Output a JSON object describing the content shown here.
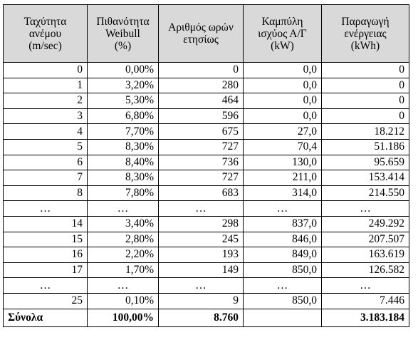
{
  "headers": [
    "Ταχύτητα\nανέμου\n(m/sec)",
    "Πιθανότητα\nWeibull\n(%)",
    "Αριθμός ωρών\nετησίως",
    "Καμπύλη\nισχύος Α/Γ\n(kW)",
    "Παραγωγή\nενέργειας\n(kWh)"
  ],
  "rows": [
    [
      "0",
      "0,00%",
      "0",
      "0,0",
      "0"
    ],
    [
      "1",
      "3,20%",
      "280",
      "0,0",
      "0"
    ],
    [
      "2",
      "5,30%",
      "464",
      "0,0",
      "0"
    ],
    [
      "3",
      "6,80%",
      "596",
      "0,0",
      "0"
    ],
    [
      "4",
      "7,70%",
      "675",
      "27,0",
      "18.212"
    ],
    [
      "5",
      "8,30%",
      "727",
      "70,4",
      "51.186"
    ],
    [
      "6",
      "8,40%",
      "736",
      "130,0",
      "95.659"
    ],
    [
      "7",
      "8,30%",
      "727",
      "211,0",
      "153.414"
    ],
    [
      "8",
      "7,80%",
      "683",
      "314,0",
      "214.550"
    ],
    [
      "…",
      "…",
      "…",
      "…",
      "…"
    ],
    [
      "14",
      "3,40%",
      "298",
      "837,0",
      "249.292"
    ],
    [
      "15",
      "2,80%",
      "245",
      "846,0",
      "207.507"
    ],
    [
      "16",
      "2,20%",
      "193",
      "849,0",
      "163.619"
    ],
    [
      "17",
      "1,70%",
      "149",
      "850,0",
      "126.582"
    ],
    [
      "…",
      "…",
      "…",
      "…",
      "…"
    ],
    [
      "25",
      "0,10%",
      "9",
      "850,0",
      "7.446"
    ]
  ],
  "totals": {
    "label": "Σύνολα",
    "probability": "100,00%",
    "hours": "8.760",
    "power": "",
    "energy": "3.183.184"
  },
  "colors": {
    "header_background": "#d9d9d9",
    "border": "#000000"
  }
}
